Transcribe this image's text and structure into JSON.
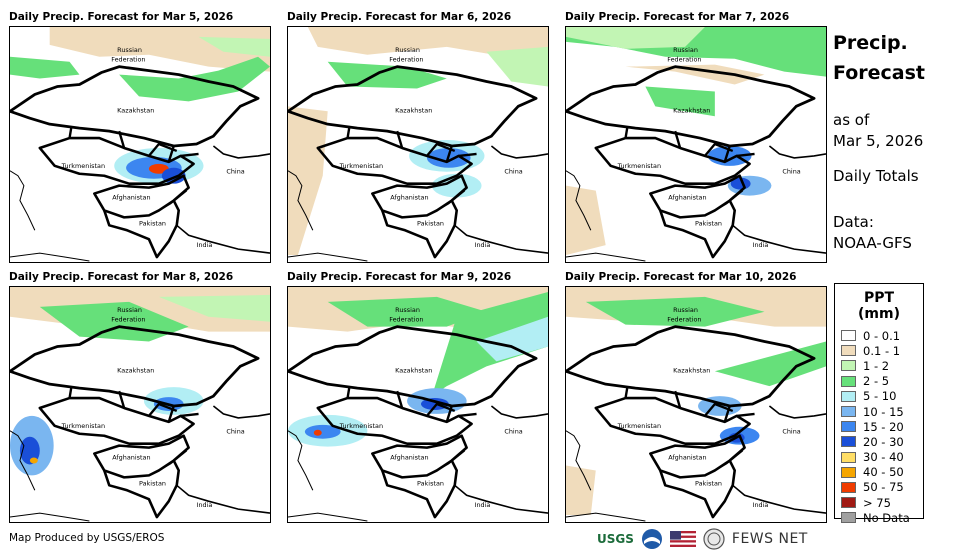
{
  "panels": [
    {
      "title": "Daily Precip. Forecast for Mar 5, 2026"
    },
    {
      "title": "Daily Precip. Forecast for Mar 6, 2026"
    },
    {
      "title": "Daily Precip. Forecast for Mar 7, 2026"
    },
    {
      "title": "Daily Precip. Forecast for Mar 8, 2026"
    },
    {
      "title": "Daily Precip. Forecast for Mar 9, 2026"
    },
    {
      "title": "Daily Precip. Forecast for Mar 10, 2026"
    }
  ],
  "map_labels": {
    "russia_line1": "Russian",
    "russia_line2": "Federation",
    "kazakhstan": "Kazakhstan",
    "turkmenistan": "Turkmenistan",
    "china": "China",
    "afghanistan": "Afghanistan",
    "pakistan": "Pakistan",
    "india": "India"
  },
  "side_info": {
    "title_line1": "Precip.",
    "title_line2": "Forecast",
    "asof_line1": "as of",
    "asof_line2": "Mar 5, 2026",
    "totals": "Daily Totals",
    "data_line1": "Data:",
    "data_line2": "NOAA-GFS"
  },
  "legend": {
    "title": "PPT (mm)",
    "items": [
      {
        "label": "0 - 0.1",
        "color": "#ffffff"
      },
      {
        "label": "0.1 - 1",
        "color": "#f0dcbc"
      },
      {
        "label": "1 - 2",
        "color": "#c2f5b4"
      },
      {
        "label": "2 - 5",
        "color": "#66e07a"
      },
      {
        "label": "5 - 10",
        "color": "#b2eef4"
      },
      {
        "label": "10 - 15",
        "color": "#7ab6f0"
      },
      {
        "label": "15 - 20",
        "color": "#3c86f0"
      },
      {
        "label": "20 - 30",
        "color": "#1a4fd8"
      },
      {
        "label": "30 - 40",
        "color": "#ffde66"
      },
      {
        "label": "40 - 50",
        "color": "#f5a500"
      },
      {
        "label": "50 - 75",
        "color": "#f03c00"
      },
      {
        "label": "> 75",
        "color": "#a01a14"
      },
      {
        "label": "No Data",
        "color": "#a0a0a0"
      }
    ]
  },
  "footer": {
    "credit": "Map Produced by USGS/EROS"
  },
  "logos": {
    "usgs": "USGS",
    "fews": "FEWS NET"
  }
}
